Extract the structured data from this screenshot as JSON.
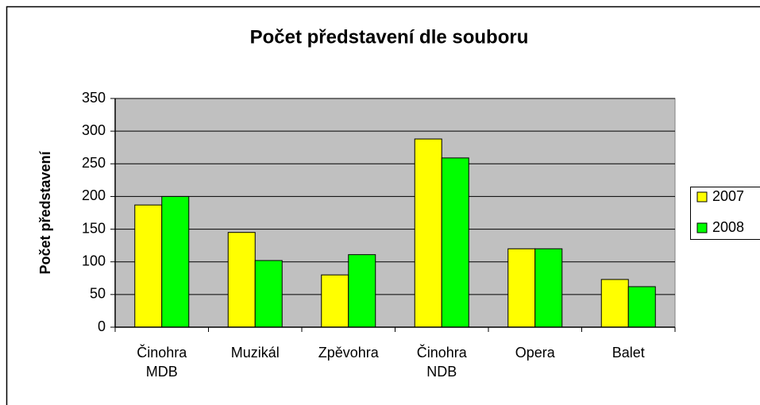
{
  "chart_data": {
    "type": "bar",
    "title": "Počet představení dle souboru",
    "y_label": "Počet představení",
    "categories": [
      "Činohra MDB",
      "Muzikál",
      "Zpěvohra",
      "Činohra NDB",
      "Opera",
      "Balet"
    ],
    "series": [
      {
        "name": "2007",
        "color": "#ffff00",
        "values": [
          187,
          145,
          80,
          288,
          120,
          73
        ]
      },
      {
        "name": "2008",
        "color": "#00ff00",
        "values": [
          200,
          102,
          111,
          259,
          120,
          62
        ]
      }
    ],
    "ylim": [
      0,
      350
    ],
    "yticks": [
      0,
      50,
      100,
      150,
      200,
      250,
      300,
      350
    ],
    "grid": true,
    "legend": "right",
    "plot_background": "#c0c0c0"
  }
}
